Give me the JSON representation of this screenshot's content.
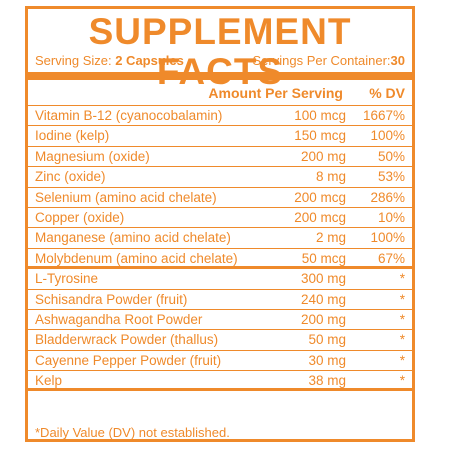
{
  "title": "SUPPLEMENT FACTS",
  "serving": {
    "size_label": "Serving Size:",
    "size_value": "2 Capsules",
    "per_container_label": "Servings Per Container:",
    "per_container_value": "30"
  },
  "header": {
    "amount_per_serving": "Amount Per Serving",
    "dv": "% DV"
  },
  "nutrients": [
    {
      "name": "Vitamin B-12 (cyanocobalamin)",
      "amount": "100 mcg",
      "dv": "1667%"
    },
    {
      "name": "Iodine (kelp)",
      "amount": "150 mcg",
      "dv": "100%"
    },
    {
      "name": "Magnesium (oxide)",
      "amount": "200 mg",
      "dv": "50%"
    },
    {
      "name": "Zinc (oxide)",
      "amount": "8 mg",
      "dv": "53%"
    },
    {
      "name": "Selenium (amino acid chelate)",
      "amount": "200 mcg",
      "dv": "286%"
    },
    {
      "name": "Copper (oxide)",
      "amount": "200 mcg",
      "dv": "10%"
    },
    {
      "name": "Manganese (amino acid chelate)",
      "amount": "2 mg",
      "dv": "100%"
    },
    {
      "name": "Molybdenum (amino acid chelate)",
      "amount": "50 mcg",
      "dv": "67%"
    }
  ],
  "ingredients": [
    {
      "name": "L-Tyrosine",
      "amount": "300 mg",
      "dv": "*"
    },
    {
      "name": "Schisandra Powder (fruit)",
      "amount": "240 mg",
      "dv": "*"
    },
    {
      "name": "Ashwagandha Root Powder",
      "amount": "200 mg",
      "dv": "*"
    },
    {
      "name": "Bladderwrack Powder (thallus)",
      "amount": "50 mg",
      "dv": "*"
    },
    {
      "name": "Cayenne Pepper Powder (fruit)",
      "amount": "30 mg",
      "dv": "*"
    },
    {
      "name": "Kelp",
      "amount": "38 mg",
      "dv": "*"
    }
  ],
  "footnote": "*Daily Value (DV) not established.",
  "colors": {
    "accent": "#ef8a2b"
  }
}
